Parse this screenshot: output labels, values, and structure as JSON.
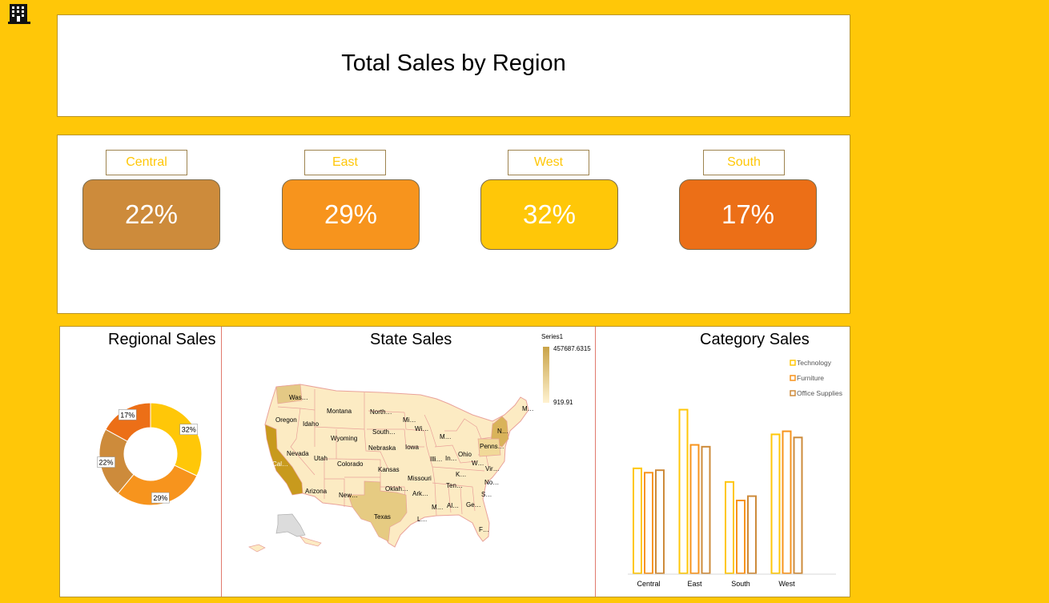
{
  "header": {
    "title": "Total Sales by Region"
  },
  "kpis": [
    {
      "label": "Central",
      "value": "22%",
      "color": "#CD8B3B"
    },
    {
      "label": "East",
      "value": "29%",
      "color": "#F7941D"
    },
    {
      "label": "West",
      "value": "32%",
      "color": "#FFC708"
    },
    {
      "label": "South",
      "value": "17%",
      "color": "#EC6F17"
    }
  ],
  "colors": {
    "background": "#FFC708",
    "panel": "#FFFFFF",
    "border": "#B8942A",
    "divider": "#E07A6E"
  },
  "regional": {
    "title": "Regional Sales"
  },
  "state": {
    "title": "State Sales",
    "legend_title": "Series1",
    "legend_max": "457687.6315",
    "legend_min": "919.91",
    "labels": [
      "Was…",
      "Montana",
      "North…",
      "Mi…",
      "Wi…",
      "M…",
      "Oregon",
      "Idaho",
      "South…",
      "Iowa",
      "M…",
      "N…",
      "Penns…",
      "Wyoming",
      "Nebraska",
      "Illi…",
      "In…",
      "Ohio",
      "W…",
      "Vir…",
      "Nevada",
      "Utah",
      "Colorado",
      "Kansas",
      "Missouri",
      "K…",
      "No…",
      "Cal…",
      "Arizona",
      "New…",
      "Oklah…",
      "Ark…",
      "Ten…",
      "S…",
      "M…",
      "Al…",
      "Ge…",
      "Texas",
      "L…",
      "F…"
    ]
  },
  "category": {
    "title": "Category Sales"
  },
  "chart_data": [
    {
      "type": "pie",
      "title": "Regional Sales",
      "categories": [
        "West",
        "East",
        "Central",
        "South"
      ],
      "values": [
        32,
        29,
        22,
        17
      ],
      "labels": [
        "32%",
        "29%",
        "22%",
        "17%"
      ],
      "colors": [
        "#FFC708",
        "#F7941D",
        "#CD8B3B",
        "#EC6F17"
      ]
    },
    {
      "type": "bar",
      "title": "Category Sales",
      "categories": [
        "Central",
        "East",
        "South",
        "West"
      ],
      "series": [
        {
          "name": "Technology",
          "values": [
            170000,
            265000,
            148000,
            225000
          ],
          "color": "#FFC708"
        },
        {
          "name": "Furniture",
          "values": [
            163000,
            208000,
            118000,
            230000
          ],
          "color": "#F7941D"
        },
        {
          "name": "Office Supplies",
          "values": [
            167000,
            205000,
            125000,
            220000
          ],
          "color": "#CD8B3B"
        }
      ],
      "ylim": [
        0,
        280000
      ],
      "legend": "top-right",
      "grid": false
    }
  ]
}
